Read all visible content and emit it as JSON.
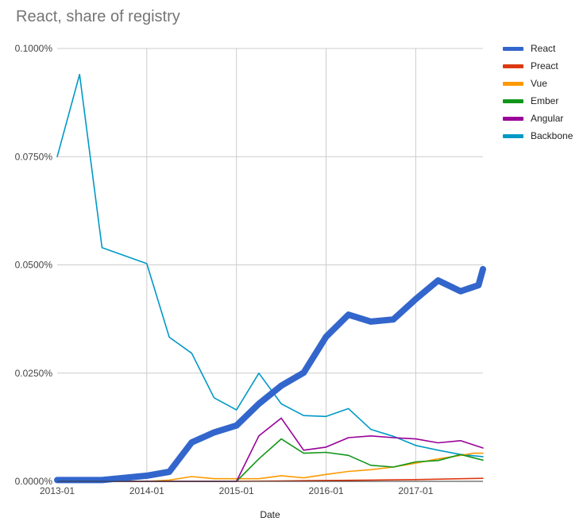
{
  "chart_data": {
    "type": "line",
    "title": "React, share of registry",
    "xlabel": "Date",
    "ylabel": "",
    "ylim": [
      0,
      0.1
    ],
    "y_ticks": [
      0,
      0.025,
      0.05,
      0.075,
      0.1
    ],
    "y_tick_labels": [
      "0.0000%",
      "0.0250%",
      "0.0500%",
      "0.0750%",
      "0.1000%"
    ],
    "x_range": [
      2013.0,
      2017.75
    ],
    "x_ticks": [
      2013.0,
      2014.0,
      2015.0,
      2016.0,
      2017.0
    ],
    "x_tick_labels": [
      "2013-01",
      "2014-01",
      "2015-01",
      "2016-01",
      "2017-01"
    ],
    "legend_position": "right",
    "series": [
      {
        "name": "Backbone",
        "color": "#0099c6",
        "emphasis": false,
        "x": [
          2013.0,
          2013.25,
          2013.5,
          2014.0,
          2014.25,
          2014.5,
          2014.75,
          2015.0,
          2015.25,
          2015.5,
          2015.75,
          2016.0,
          2016.25,
          2016.5,
          2016.75,
          2017.0,
          2017.25,
          2017.5,
          2017.75
        ],
        "values": [
          0.075,
          0.094,
          0.054,
          0.0503,
          0.0333,
          0.0296,
          0.0193,
          0.0165,
          0.025,
          0.0179,
          0.0152,
          0.015,
          0.0168,
          0.012,
          0.0104,
          0.0083,
          0.0072,
          0.0062,
          0.0057
        ]
      },
      {
        "name": "Preact",
        "color": "#dc3912",
        "emphasis": false,
        "x": [
          2013.0,
          2013.5,
          2014.0,
          2014.5,
          2015.0,
          2015.5,
          2016.0,
          2016.5,
          2017.0,
          2017.5,
          2017.75
        ],
        "values": [
          0,
          0,
          0,
          0,
          0,
          0.0001,
          0.0002,
          0.0003,
          0.0004,
          0.0006,
          0.0007
        ]
      },
      {
        "name": "Vue",
        "color": "#ff9900",
        "emphasis": false,
        "x": [
          2013.0,
          2013.5,
          2014.0,
          2014.25,
          2014.5,
          2014.75,
          2015.0,
          2015.25,
          2015.5,
          2015.75,
          2016.0,
          2016.25,
          2016.5,
          2016.75,
          2017.0,
          2017.25,
          2017.5,
          2017.65,
          2017.75
        ],
        "values": [
          0,
          0,
          0,
          0.0003,
          0.0011,
          0.0006,
          0.0006,
          0.0006,
          0.0013,
          0.0008,
          0.0016,
          0.0023,
          0.0027,
          0.0033,
          0.0042,
          0.0052,
          0.006,
          0.0065,
          0.0065
        ]
      },
      {
        "name": "Ember",
        "color": "#109618",
        "emphasis": false,
        "x": [
          2013.0,
          2014.0,
          2014.5,
          2015.0,
          2015.25,
          2015.5,
          2015.75,
          2016.0,
          2016.25,
          2016.5,
          2016.75,
          2017.0,
          2017.25,
          2017.5,
          2017.75
        ],
        "values": [
          0,
          0,
          0,
          0,
          0.0052,
          0.0098,
          0.0065,
          0.0067,
          0.006,
          0.0037,
          0.0033,
          0.0045,
          0.0048,
          0.0062,
          0.0049
        ]
      },
      {
        "name": "Angular",
        "color": "#990099",
        "emphasis": false,
        "x": [
          2013.0,
          2014.0,
          2014.5,
          2015.0,
          2015.25,
          2015.5,
          2015.75,
          2016.0,
          2016.25,
          2016.5,
          2016.75,
          2017.0,
          2017.25,
          2017.5,
          2017.75
        ],
        "values": [
          0,
          0,
          0,
          0,
          0.0105,
          0.0146,
          0.0072,
          0.0079,
          0.0101,
          0.0105,
          0.0101,
          0.0098,
          0.0089,
          0.0094,
          0.0077
        ]
      },
      {
        "name": "React",
        "color": "#3366cc",
        "emphasis": true,
        "x": [
          2013.0,
          2013.25,
          2013.5,
          2014.0,
          2014.25,
          2014.5,
          2014.75,
          2015.0,
          2015.25,
          2015.5,
          2015.75,
          2016.0,
          2016.25,
          2016.5,
          2016.75,
          2017.0,
          2017.25,
          2017.5,
          2017.7,
          2017.75
        ],
        "values": [
          0.0003,
          0.0003,
          0.0003,
          0.0013,
          0.0022,
          0.009,
          0.0113,
          0.0129,
          0.0179,
          0.0221,
          0.0251,
          0.0334,
          0.0385,
          0.0369,
          0.0374,
          0.0421,
          0.0464,
          0.0439,
          0.0453,
          0.049
        ]
      }
    ]
  }
}
